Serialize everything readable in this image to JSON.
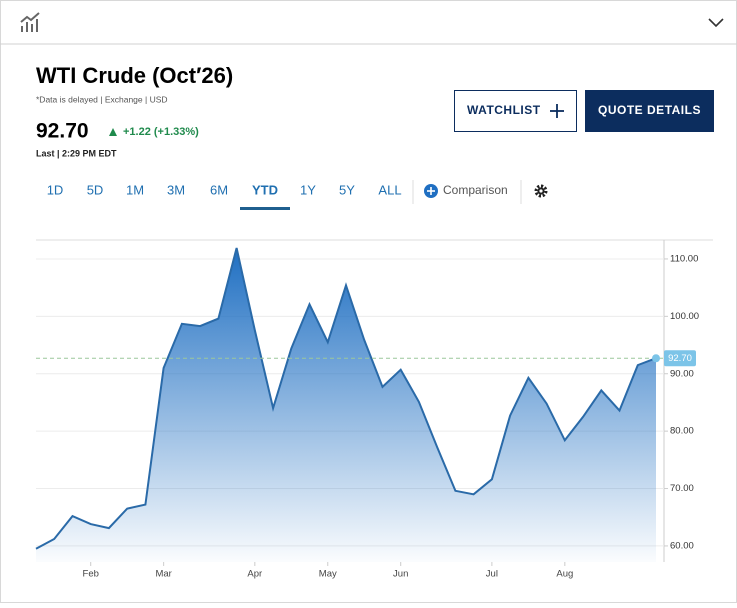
{
  "header": {
    "title": "WTI Crude (Oct′26)",
    "note": "*Data is delayed | Exchange | USD"
  },
  "quote": {
    "price": "92.70",
    "change": "+1.22 (+1.33%)",
    "time": "Last | 2:29 PM EDT"
  },
  "buttons": {
    "watchlist": "WATCHLIST",
    "details": "QUOTE DETAILS"
  },
  "tabs": [
    "1D",
    "5D",
    "1M",
    "3M",
    "6M",
    "YTD",
    "1Y",
    "5Y",
    "ALL"
  ],
  "active_tab": 5,
  "comparison": "Comparison",
  "chart_data": {
    "type": "area",
    "categories": [
      null,
      null,
      null,
      "Feb",
      null,
      null,
      null,
      "Mar",
      null,
      null,
      null,
      null,
      "Apr",
      null,
      null,
      null,
      "May",
      null,
      null,
      null,
      "Jun",
      null,
      null,
      null,
      null,
      "Jul",
      null,
      null,
      null,
      "Aug",
      null,
      null,
      null,
      null,
      null
    ],
    "values": [
      59.5,
      61.2,
      65.2,
      63.8,
      63.1,
      66.5,
      67.2,
      91.0,
      98.7,
      98.3,
      99.6,
      111.9,
      97.6,
      84.0,
      94.4,
      102.1,
      95.5,
      105.4,
      95.9,
      87.7,
      90.7,
      85.1,
      77.2,
      69.6,
      69.0,
      71.6,
      82.7,
      89.3,
      84.8,
      78.4,
      82.5,
      87.1,
      83.6,
      91.5,
      92.7
    ],
    "color": "#2a6aa8",
    "ylim": [
      57.2,
      113.3
    ],
    "yticks": [
      {
        "value": 60,
        "label": "60.00"
      },
      {
        "value": 70,
        "label": "70.00"
      },
      {
        "value": 80,
        "label": "80.00"
      },
      {
        "value": 90,
        "label": "90.00"
      },
      {
        "value": 100,
        "label": "100.00"
      },
      {
        "value": 110,
        "label": "110.00"
      }
    ],
    "grid": true
  }
}
